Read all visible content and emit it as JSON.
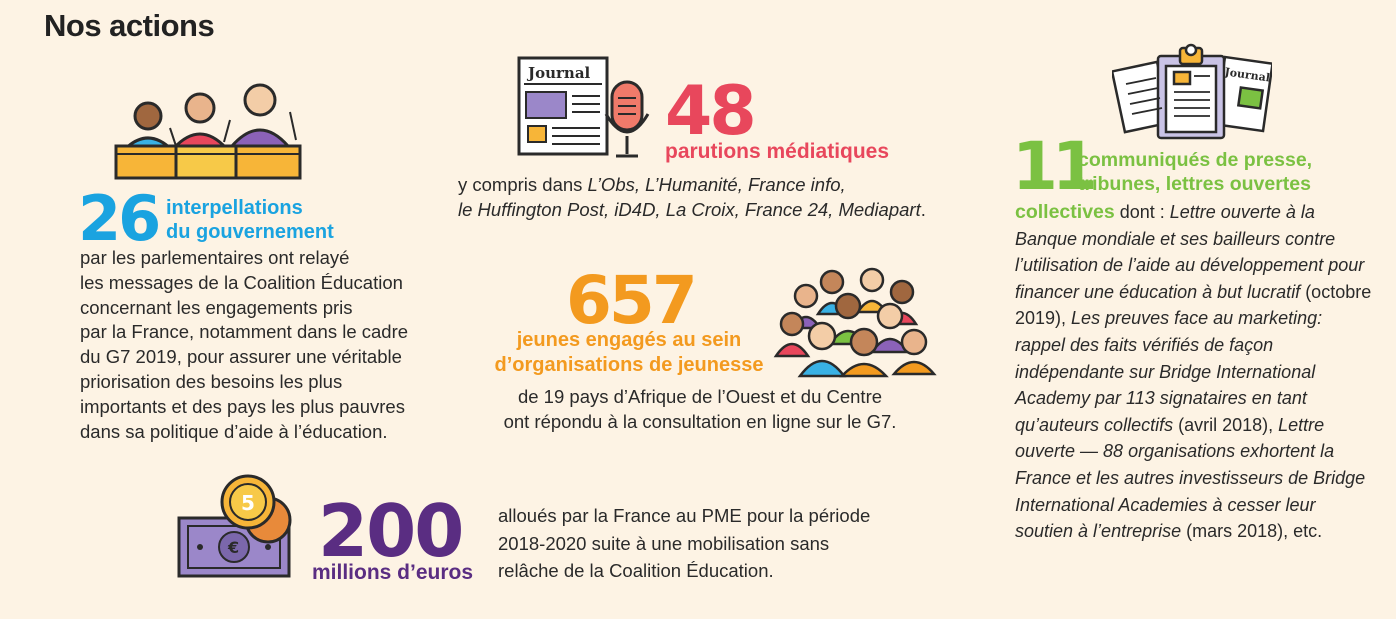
{
  "title": "Nos actions",
  "colors": {
    "blue": "#1aa3e0",
    "red": "#e8475c",
    "orange": "#f39a1f",
    "purple": "#5a2d82",
    "green": "#7bc142"
  },
  "interpellations": {
    "number": "26",
    "heading_l1": "interpellations",
    "heading_l2": "du gouvernement",
    "lines": [
      "par les parlementaires ont relayé",
      "les messages de la Coalition Éducation",
      "concernant les engagements pris",
      "par la France, notamment dans le cadre",
      "du G7 2019, pour assurer une véritable",
      "priorisation des besoins les plus",
      "importants et des pays les plus pauvres",
      "dans sa politique d’aide à l’éducation."
    ],
    "icon": "parliament-people-icon"
  },
  "media": {
    "number": "48",
    "heading": "parutions médiatiques",
    "line1_prefix": "y compris dans ",
    "line1_italic": "L’Obs, L’Humanité, France info,",
    "line2_italic": "le Huffington Post, iD4D, La Croix, France 24, Mediapart",
    "line2_suffix": ".",
    "journal_label": "Journal",
    "icon": "newspaper-microphone-icon"
  },
  "youth": {
    "number": "657",
    "heading_l1": "jeunes engagés au sein",
    "heading_l2": "d’organisations de jeunesse",
    "line1": "de 19 pays d’Afrique de l’Ouest et du Centre",
    "line2": "ont répondu à la consultation en ligne sur le G7.",
    "icon": "crowd-icon"
  },
  "funding": {
    "number": "200",
    "heading": "millions d’euros",
    "lines": [
      "alloués par la France au PME pour la période",
      "2018-2020 suite à une mobilisation sans",
      "relâche de la Coalition Éducation."
    ],
    "coin_label": "5",
    "icon": "banknote-coins-icon"
  },
  "press": {
    "number": "11",
    "heading_l1": "communiqués de presse,",
    "heading_l2": "tribunes, lettres ouvertes",
    "heading_l3": "collectives",
    "dont": " dont : ",
    "journal_label": "Journal",
    "icon": "documents-clipboard-icon",
    "seg1_it": "Lettre ouverte à la Banque mondiale et ses bailleurs contre l’utilisation de l’aide au développement pour financer une éducation à but lucratif",
    "seg1_date": " (octobre 2019), ",
    "seg2_it": "Les preuves face au marketing: rappel des faits vérifiés de façon indépendante sur Bridge International Academy par 113 signataires en tant qu’auteurs collectifs",
    "seg2_date": " (avril 2018), ",
    "seg3_it": "Lettre ouverte — 88 organisations exhortent la France et les autres investisseurs de Bridge International Academies à cesser leur soutien à l’entreprise",
    "seg3_date": " (mars 2018), etc."
  }
}
